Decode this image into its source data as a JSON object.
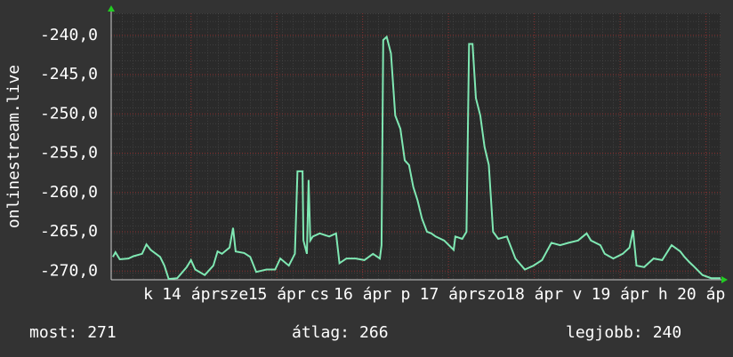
{
  "chart_data": {
    "type": "line",
    "y_label": "onlinestream.live",
    "xlim": [
      13.07,
      20.17
    ],
    "ylim": [
      -271.1,
      -237.2
    ],
    "xticks": [
      {
        "value": 13.5,
        "label": "k"
      },
      {
        "value": 14,
        "label": "14 ápr"
      },
      {
        "value": 14.5,
        "label": "sze"
      },
      {
        "value": 15,
        "label": "15 ápr"
      },
      {
        "value": 15.5,
        "label": "cs"
      },
      {
        "value": 16,
        "label": "16 ápr"
      },
      {
        "value": 16.5,
        "label": "p"
      },
      {
        "value": 17,
        "label": "17 ápr"
      },
      {
        "value": 17.5,
        "label": "szo"
      },
      {
        "value": 18,
        "label": "18 ápr"
      },
      {
        "value": 18.5,
        "label": "v"
      },
      {
        "value": 19,
        "label": "19 ápr"
      },
      {
        "value": 19.5,
        "label": "h"
      },
      {
        "value": 20,
        "label": "20 áp"
      }
    ],
    "yticks": [
      {
        "value": -240,
        "label": "-240,0"
      },
      {
        "value": -245,
        "label": "-245,0"
      },
      {
        "value": -250,
        "label": "-250,0"
      },
      {
        "value": -255,
        "label": "-255,0"
      },
      {
        "value": -260,
        "label": "-260,0"
      },
      {
        "value": -265,
        "label": "-265,0"
      },
      {
        "value": -270,
        "label": "-270,0"
      }
    ],
    "grid": true,
    "series": [
      {
        "color": "#7fe8b3",
        "x": [
          13.09,
          13.12,
          13.17,
          13.27,
          13.33,
          13.43,
          13.48,
          13.53,
          13.64,
          13.69,
          13.74,
          13.84,
          13.95,
          14.0,
          14.05,
          14.16,
          14.26,
          14.31,
          14.36,
          14.45,
          14.49,
          14.52,
          14.62,
          14.69,
          14.76,
          14.88,
          14.98,
          15.04,
          15.14,
          15.21,
          15.24,
          15.3,
          15.31,
          15.35,
          15.37,
          15.39,
          15.42,
          15.5,
          15.61,
          15.69,
          15.73,
          15.81,
          15.92,
          16.02,
          16.12,
          16.2,
          16.22,
          16.24,
          16.28,
          16.33,
          16.38,
          16.44,
          16.49,
          16.54,
          16.59,
          16.64,
          16.69,
          16.75,
          16.8,
          16.85,
          16.95,
          17.06,
          17.08,
          17.16,
          17.21,
          17.24,
          17.28,
          17.32,
          17.37,
          17.42,
          17.47,
          17.52,
          17.58,
          17.68,
          17.73,
          17.78,
          17.89,
          17.99,
          18.09,
          18.2,
          18.3,
          18.4,
          18.51,
          18.61,
          18.66,
          18.77,
          18.82,
          18.92,
          19.03,
          19.11,
          19.15,
          19.19,
          19.28,
          19.39,
          19.49,
          19.6,
          19.7,
          19.75,
          19.81,
          19.85,
          19.96,
          20.06,
          20.17
        ],
        "values": [
          -268.2,
          -267.6,
          -268.5,
          -268.4,
          -268.1,
          -267.8,
          -266.6,
          -267.3,
          -268.2,
          -269.3,
          -271.0,
          -270.9,
          -269.5,
          -268.6,
          -269.8,
          -270.5,
          -269.3,
          -267.5,
          -267.8,
          -267.0,
          -264.5,
          -267.5,
          -267.7,
          -268.2,
          -270.1,
          -269.8,
          -269.8,
          -268.4,
          -269.3,
          -267.8,
          -257.3,
          -257.3,
          -266.1,
          -267.8,
          -258.4,
          -266.1,
          -265.6,
          -265.2,
          -265.6,
          -265.2,
          -269.0,
          -268.4,
          -268.4,
          -268.6,
          -267.8,
          -268.4,
          -266.7,
          -240.6,
          -240.2,
          -242.3,
          -250.2,
          -251.9,
          -255.9,
          -256.5,
          -259.3,
          -261.0,
          -263.3,
          -265.0,
          -265.2,
          -265.6,
          -266.1,
          -267.3,
          -265.6,
          -265.9,
          -265.0,
          -241.1,
          -241.1,
          -248.0,
          -250.2,
          -254.2,
          -256.5,
          -265.0,
          -265.9,
          -265.6,
          -267.0,
          -268.4,
          -269.8,
          -269.3,
          -268.6,
          -266.4,
          -266.7,
          -266.4,
          -266.1,
          -265.2,
          -266.1,
          -266.7,
          -267.8,
          -268.4,
          -267.8,
          -267.0,
          -264.8,
          -269.3,
          -269.5,
          -268.4,
          -268.6,
          -266.7,
          -267.5,
          -268.2,
          -268.9,
          -269.3,
          -270.5,
          -270.9,
          -270.9
        ]
      }
    ],
    "stats": [
      {
        "label": "most:",
        "value": 271
      },
      {
        "label": "átlag:",
        "value": 266
      },
      {
        "label": "legjobb:",
        "value": 240
      }
    ]
  }
}
